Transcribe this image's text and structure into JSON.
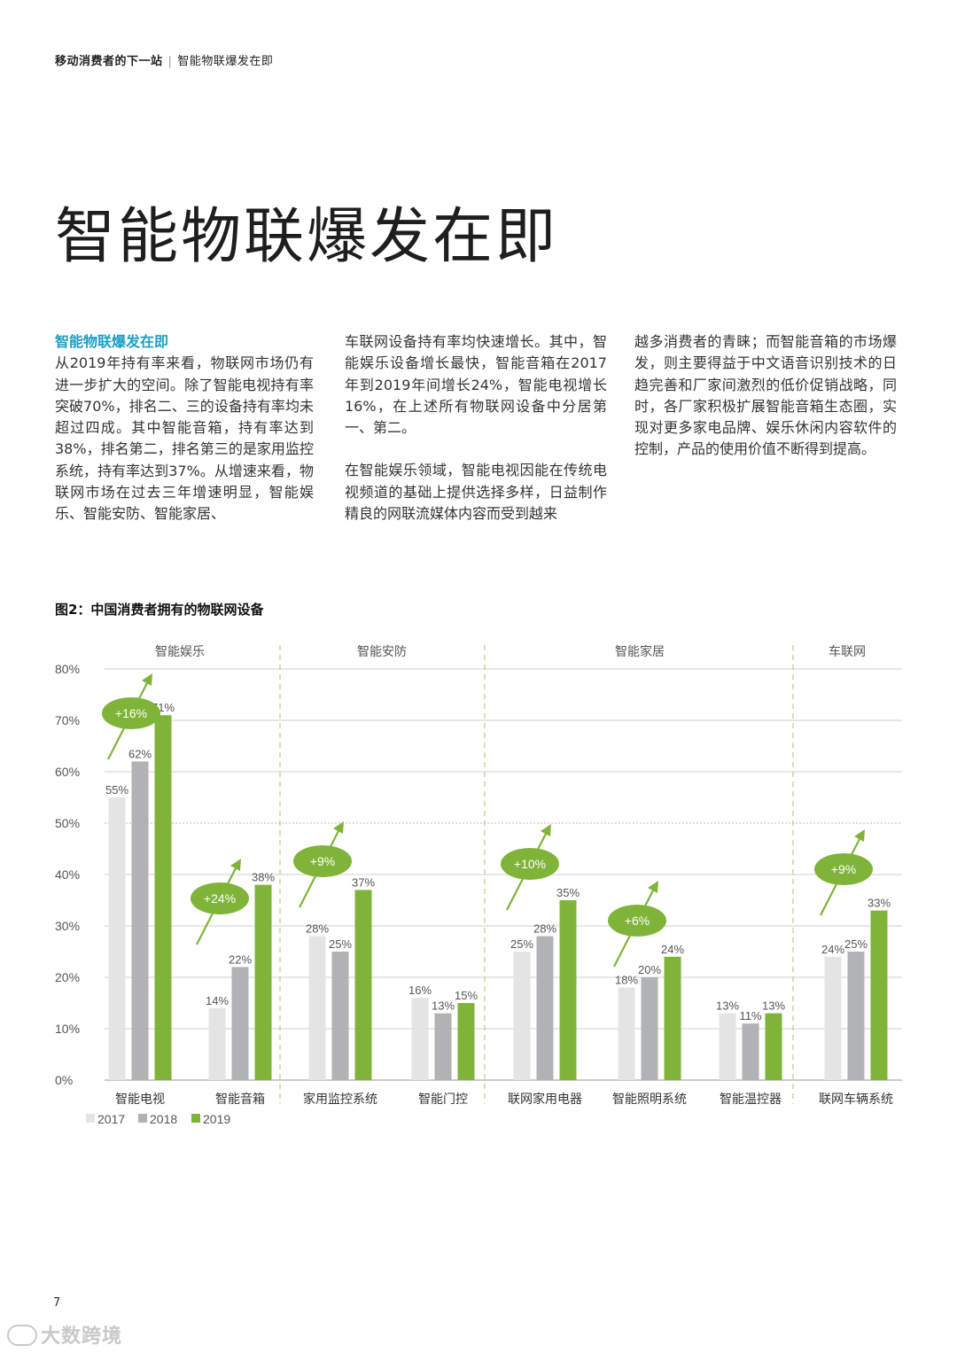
{
  "header": {
    "publication": "移动消费者的下一站",
    "section": "智能物联爆发在即"
  },
  "page_title": "智能物联爆发在即",
  "body": {
    "subheading": "智能物联爆发在即",
    "col1": "从2019年持有率来看，物联网市场仍有进一步扩大的空间。除了智能电视持有率突破70%，排名二、三的设备持有率均未超过四成。其中智能音箱，持有率达到38%，排名第二，排名第三的是家用监控系统，持有率达到37%。从增速来看，物联网市场在过去三年增速明显，智能娱乐、智能安防、智能家居、",
    "col2_p1": "车联网设备持有率均快速增长。其中，智能娱乐设备增长最快，智能音箱在2017年到2019年间增长24%，智能电视增长16%，在上述所有物联网设备中分居第一、第二。",
    "col2_p2": "在智能娱乐领域，智能电视因能在传统电视频道的基础上提供选择多样，日益制作精良的网联流媒体内容而受到越来",
    "col3": "越多消费者的青睐；而智能音箱的市场爆发，则主要得益于中文语音识别技术的日趋完善和厂家间激烈的低价促销战略，同时，各厂家积极扩展智能音箱生态圈，实现对更多家电品牌、娱乐休闲内容软件的控制，产品的使用价值不断得到提高。"
  },
  "figure_title": "图2：中国消费者拥有的物联网设备",
  "chart_data": {
    "type": "bar",
    "title": "图2：中国消费者拥有的物联网设备",
    "categories": [
      "智能电视",
      "智能音箱",
      "家用监控系统",
      "智能门控",
      "联网家用电器",
      "智能照明系统",
      "智能温控器",
      "联网车辆系统"
    ],
    "series": [
      {
        "name": "2017",
        "values": [
          55,
          14,
          28,
          16,
          25,
          18,
          13,
          24
        ],
        "labels": [
          "55%",
          "14%",
          "28%",
          "16%",
          "25%",
          "18%",
          "13%",
          "24%"
        ]
      },
      {
        "name": "2018",
        "values": [
          62,
          22,
          25,
          13,
          28,
          20,
          11,
          25
        ],
        "labels": [
          "62%",
          "22%",
          "25%",
          "13%",
          "28%",
          "20%",
          "11%",
          "25%"
        ]
      },
      {
        "name": "2019",
        "values": [
          71,
          38,
          37,
          15,
          35,
          24,
          13,
          33
        ],
        "labels": [
          "71%",
          "38%",
          "37%",
          "15%",
          "35%",
          "24%",
          "13%",
          "33%"
        ]
      }
    ],
    "groups": [
      {
        "label": "智能娱乐",
        "categories": [
          "智能电视",
          "智能音箱"
        ]
      },
      {
        "label": "智能安防",
        "categories": [
          "家用监控系统",
          "智能门控"
        ]
      },
      {
        "label": "智能家居",
        "categories": [
          "联网家用电器",
          "智能照明系统",
          "智能温控器"
        ]
      },
      {
        "label": "车联网",
        "categories": [
          "联网车辆系统"
        ]
      }
    ],
    "growth_badges": [
      {
        "category": "智能电视",
        "text": "+16%"
      },
      {
        "category": "智能音箱",
        "text": "+24%"
      },
      {
        "category": "家用监控系统",
        "text": "+9%"
      },
      {
        "category": "联网家用电器",
        "text": "+10%"
      },
      {
        "category": "智能照明系统",
        "text": "+6%"
      },
      {
        "category": "联网车辆系统",
        "text": "+9%"
      }
    ],
    "yticks": [
      "0%",
      "10%",
      "20%",
      "30%",
      "40%",
      "50%",
      "60%",
      "70%",
      "80%"
    ],
    "ylim": [
      0,
      80
    ],
    "xlabel": "",
    "ylabel": "",
    "grid": true,
    "legend_position": "bottom-left",
    "colors": {
      "2017": "#e4e4e4",
      "2018": "#b1b2b4",
      "2019": "#7fb439",
      "badge": "#7fb439",
      "divider": "#a8c66c"
    }
  },
  "page_number": "7",
  "watermark": "大数跨境"
}
